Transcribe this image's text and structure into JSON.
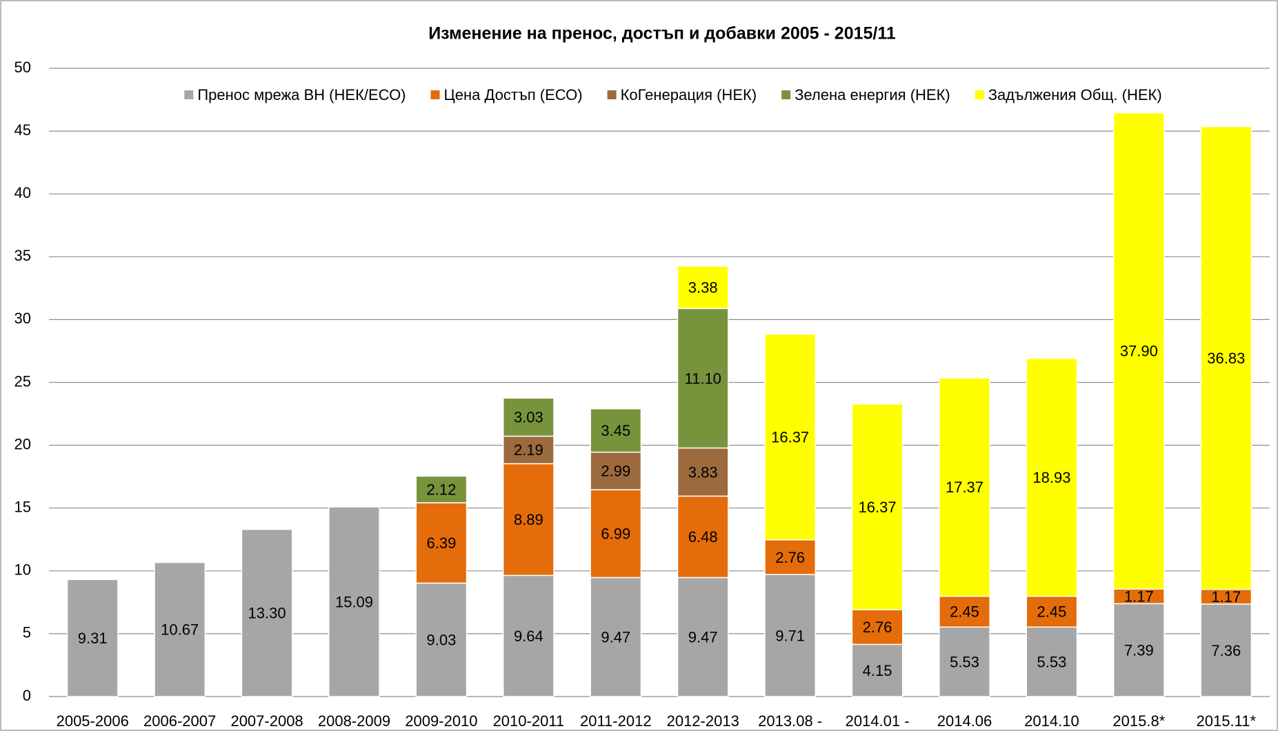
{
  "chart_data": {
    "type": "stacked_bar",
    "title": "Изменение на пренос, достъп и добавки 2005 - 2015/11",
    "categories": [
      "2005-2006",
      "2006-2007",
      "2007-2008",
      "2008-2009",
      "2009-2010",
      "2010-2011",
      "2011-2012",
      "2012-2013",
      "2013.08 -",
      "2014.01 -",
      "2014.06",
      "2014.10",
      "2015.8*",
      "2015.11*"
    ],
    "series": [
      {
        "name": "Пренос мрежа ВН (НЕК/ЕСО)",
        "color": "#a6a6a6",
        "values": [
          9.31,
          10.67,
          13.3,
          15.09,
          9.03,
          9.64,
          9.47,
          9.47,
          9.71,
          4.15,
          5.53,
          5.53,
          7.39,
          7.36
        ],
        "value_labels": [
          "9.31",
          "10.67",
          "13.30",
          "15.09",
          "9.03",
          "9.64",
          "9.47",
          "9.47",
          "9.71",
          "4.15",
          "5.53",
          "5.53",
          "7.39",
          "7.36"
        ]
      },
      {
        "name": "Цена Достъп (ЕСО)",
        "color": "#e46c0a",
        "values": [
          null,
          null,
          null,
          null,
          6.39,
          8.89,
          6.99,
          6.48,
          2.76,
          2.76,
          2.45,
          2.45,
          1.17,
          1.17
        ],
        "value_labels": [
          null,
          null,
          null,
          null,
          "6.39",
          "8.89",
          "6.99",
          "6.48",
          "2.76",
          "2.76",
          "2.45",
          "2.45",
          "1.17",
          "1.17"
        ]
      },
      {
        "name": "КоГенерация (НЕК)",
        "color": "#9c6a3c",
        "values": [
          null,
          null,
          null,
          null,
          null,
          2.19,
          2.99,
          3.83,
          null,
          null,
          null,
          null,
          null,
          null
        ],
        "value_labels": [
          null,
          null,
          null,
          null,
          null,
          "2.19",
          "2.99",
          "3.83",
          null,
          null,
          null,
          null,
          null,
          null
        ]
      },
      {
        "name": "Зелена енергия (НЕК)",
        "color": "#77933c",
        "values": [
          null,
          null,
          null,
          null,
          2.12,
          3.03,
          3.45,
          11.1,
          null,
          null,
          null,
          null,
          null,
          null
        ],
        "value_labels": [
          null,
          null,
          null,
          null,
          "2.12",
          "3.03",
          "3.45",
          "11.10",
          null,
          null,
          null,
          null,
          null,
          null
        ]
      },
      {
        "name": "Задължения Общ. (НЕК)",
        "color": "#ffff00",
        "values": [
          null,
          null,
          null,
          null,
          null,
          null,
          null,
          3.38,
          16.37,
          16.37,
          17.37,
          18.93,
          37.9,
          36.83
        ],
        "value_labels": [
          null,
          null,
          null,
          null,
          null,
          null,
          null,
          "3.38",
          "16.37",
          "16.37",
          "17.37",
          "18.93",
          "37.90",
          "36.83"
        ]
      }
    ],
    "ylim": [
      0,
      50
    ],
    "yticks": [
      0,
      5,
      10,
      15,
      20,
      25,
      30,
      35,
      40,
      45,
      50
    ],
    "grid": true,
    "legend": "top"
  }
}
